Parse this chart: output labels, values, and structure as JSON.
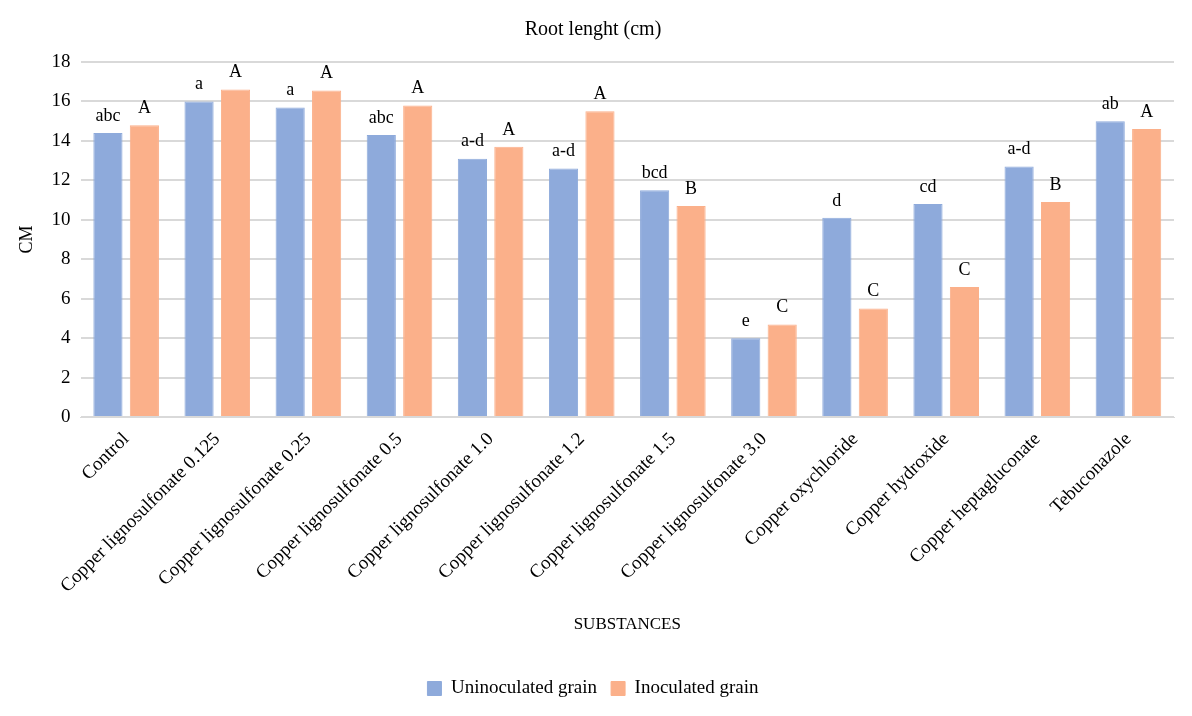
{
  "chart_data": {
    "type": "bar",
    "title": "Root lenght (cm)",
    "xlabel": "SUBSTANCES",
    "ylabel": "CM",
    "categories": [
      "Control",
      "Copper lignosulfonate 0.125",
      "Copper lignosulfonate 0.25",
      "Copper lignosulfonate 0.5",
      "Copper lignosulfonate 1.0",
      "Copper lignosulfonate 1.2",
      "Copper lignosulfonate 1.5",
      "Copper lignosulfonate 3.0",
      "Copper oxychloride",
      "Copper hydroxide",
      "Copper heptagluconate",
      "Tebuconazole"
    ],
    "series": [
      {
        "name": "Uninoculated grain",
        "color": "#8eaadb",
        "values": [
          14.4,
          16.0,
          15.7,
          14.3,
          13.1,
          12.6,
          11.5,
          4.0,
          10.1,
          10.8,
          12.7,
          15.0
        ]
      },
      {
        "name": "Inoculated grain",
        "color": "#fbb08a",
        "values": [
          14.8,
          16.6,
          16.55,
          15.8,
          13.7,
          15.5,
          10.7,
          4.7,
          5.5,
          6.6,
          10.9,
          14.6
        ]
      }
    ],
    "annotations": [
      {
        "text": "abc",
        "x": "Control",
        "y": 14.4
      },
      {
        "text": "A",
        "x": "Control",
        "y": 14.8
      },
      {
        "text": "a",
        "x": "Copper lignosulfonate 0.125",
        "y": 16.0
      },
      {
        "text": "A",
        "x": "Copper lignosulfonate 0.125",
        "y": 16.6
      },
      {
        "text": "a",
        "x": "Copper lignosulfonate 0.25",
        "y": 15.7
      },
      {
        "text": "A",
        "x": "Copper lignosulfonate 0.25",
        "y": 16.55
      },
      {
        "text": "abc",
        "x": "Copper lignosulfonate 0.5",
        "y": 14.3
      },
      {
        "text": "A",
        "x": "Copper lignosulfonate 0.5",
        "y": 15.8
      },
      {
        "text": "a-d",
        "x": "Copper lignosulfonate 1.0",
        "y": 13.1
      },
      {
        "text": "A",
        "x": "Copper lignosulfonate 1.0",
        "y": 13.7
      },
      {
        "text": "a-d",
        "x": "Copper lignosulfonate 1.2",
        "y": 12.6
      },
      {
        "text": "A",
        "x": "Copper lignosulfonate 1.2",
        "y": 15.5
      },
      {
        "text": "bcd",
        "x": "Copper lignosulfonate 1.5",
        "y": 11.5
      },
      {
        "text": "B",
        "x": "Copper lignosulfonate 1.5",
        "y": 10.7
      },
      {
        "text": "e",
        "x": "Copper lignosulfonate 3.0",
        "y": 4.0
      },
      {
        "text": "C",
        "x": "Copper lignosulfonate 3.0",
        "y": 4.7
      },
      {
        "text": "d",
        "x": "Copper oxychloride",
        "y": 10.1
      },
      {
        "text": "C",
        "x": "Copper oxychloride",
        "y": 5.5
      },
      {
        "text": "cd",
        "x": "Copper hydroxide",
        "y": 10.8
      },
      {
        "text": "C",
        "x": "Copper hydroxide",
        "y": 6.6
      },
      {
        "text": "a-d",
        "x": "Copper heptagluconate",
        "y": 12.7
      },
      {
        "text": "B",
        "x": "Copper heptagluconate",
        "y": 10.9
      },
      {
        "text": "ab",
        "x": "Tebuconazole",
        "y": 15.0
      },
      {
        "text": "A",
        "x": "Tebuconazole",
        "y": 14.6
      }
    ],
    "ylim": [
      0,
      18
    ],
    "yticks": [
      0,
      2,
      4,
      6,
      8,
      10,
      12,
      14,
      16,
      18
    ],
    "grid": "y",
    "legend": "bottom"
  }
}
